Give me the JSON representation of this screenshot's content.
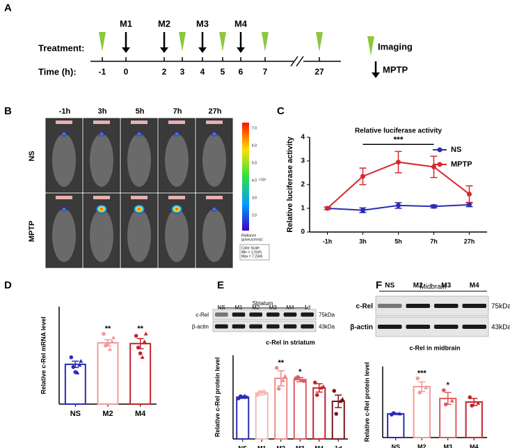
{
  "panel_labels": [
    "A",
    "B",
    "C",
    "D",
    "E",
    "F"
  ],
  "panel_a": {
    "treatment_label": "Treatment:",
    "time_label": "Time (h):",
    "time_ticks": [
      "-1",
      "0",
      "2",
      "3",
      "4",
      "5",
      "6",
      "7",
      "27"
    ],
    "doses": [
      "M1",
      "M2",
      "M3",
      "M4"
    ],
    "legend": [
      "Imaging",
      "MPTP"
    ]
  },
  "panel_b": {
    "timepoints": [
      "-1h",
      "3h",
      "5h",
      "7h",
      "27h"
    ],
    "rows": [
      "NS",
      "MPTP"
    ],
    "colorbar_ticks": [
      "7.0",
      "6.0",
      "5.0",
      "4.0",
      "3.0",
      "2.0"
    ],
    "colorbar_unit": "×10⁵",
    "colorbar_title": [
      "Radiance",
      "(p/sec/cm²/sr)"
    ],
    "color_scale": [
      "Color Scale",
      "Min = 1.01e5",
      "Max = 7.23e5"
    ]
  },
  "blots": [
    {
      "region": "Striatum",
      "lanes": [
        "NS",
        "M1",
        "M2",
        "M3",
        "M4",
        "1d"
      ],
      "rows": [
        "c-Rel",
        "β-actin"
      ],
      "sizes": [
        "75kDa",
        "43kDa"
      ]
    },
    {
      "region": "Midbrain",
      "lanes": [
        "NS",
        "M2",
        "M3",
        "M4"
      ],
      "rows": [
        "c-Rel",
        "β-actin"
      ],
      "sizes": [
        "75kDa",
        "43kDa"
      ]
    }
  ],
  "chart_data": [
    {
      "type": "line",
      "title": "Relative luciferase activity",
      "ylabel": "Relative luciferase activity",
      "categories": [
        "-1h",
        "3h",
        "5h",
        "7h",
        "27h"
      ],
      "ylim": [
        0,
        4
      ],
      "yticks": [
        0,
        1,
        2,
        3,
        4
      ],
      "series": [
        {
          "name": "NS",
          "color": "#2b2bb5",
          "values": [
            1.0,
            0.92,
            1.12,
            1.08,
            1.15
          ],
          "errors": [
            0.05,
            0.1,
            0.12,
            0.06,
            0.08
          ]
        },
        {
          "name": "MPTP",
          "color": "#d7282f",
          "values": [
            1.0,
            2.35,
            2.95,
            2.75,
            1.6
          ],
          "errors": [
            0.05,
            0.35,
            0.45,
            0.45,
            0.35
          ]
        }
      ],
      "annotation": "***",
      "legend": "top-right"
    },
    {
      "type": "bar",
      "ylabel": "Relative c-Rel mRNA level",
      "categories": [
        "NS",
        "M2",
        "M4"
      ],
      "colors": [
        "#2b2bb5",
        "#f09a9a",
        "#c4232b"
      ],
      "values": [
        1.02,
        1.57,
        1.55
      ],
      "errors": [
        0.08,
        0.08,
        0.13
      ],
      "points": [
        [
          1.2,
          1.0,
          0.95,
          0.8,
          0.82,
          1.1
        ],
        [
          1.8,
          1.6,
          1.5,
          1.4,
          1.55,
          1.7
        ],
        [
          1.75,
          1.6,
          1.45,
          1.2,
          1.3,
          1.8
        ]
      ],
      "significance": [
        null,
        "**",
        "**"
      ],
      "ylim": [
        0,
        2.5
      ]
    },
    {
      "type": "bar",
      "title": "c-Rel in striatum",
      "ylabel": "Relative c-Rel protein level",
      "categories": [
        "NS",
        "M1",
        "M2",
        "M3",
        "M4",
        "1d"
      ],
      "colors": [
        "#2b2bb5",
        "#f4b8b8",
        "#ec8a8a",
        "#e05a5a",
        "#c4232b",
        "#7a1518"
      ],
      "values": [
        1.0,
        1.1,
        1.45,
        1.42,
        1.22,
        0.9
      ],
      "errors": [
        0.03,
        0.05,
        0.18,
        0.05,
        0.1,
        0.15
      ],
      "points": [
        [
          0.97,
          1.0,
          1.02,
          1.03
        ],
        [
          1.05,
          1.1,
          1.12,
          1.14
        ],
        [
          1.7,
          1.5,
          1.2,
          1.4
        ],
        [
          1.45,
          1.38,
          1.48,
          1.4
        ],
        [
          1.35,
          1.25,
          1.05,
          1.22
        ],
        [
          1.15,
          0.95,
          0.6,
          0.9
        ]
      ],
      "significance": [
        null,
        null,
        "**",
        "*",
        null,
        null
      ],
      "ylim": [
        0,
        2
      ]
    },
    {
      "type": "bar",
      "title": "c-Rel in midbrain",
      "ylabel": "Relative c-Rel protein level",
      "categories": [
        "NS",
        "M2",
        "M3",
        "M4"
      ],
      "colors": [
        "#2b2bb5",
        "#f09a9a",
        "#e05a5a",
        "#c4232b"
      ],
      "values": [
        1.0,
        2.15,
        1.65,
        1.5
      ],
      "errors": [
        0.03,
        0.2,
        0.25,
        0.15
      ],
      "points": [
        [
          0.97,
          1.0,
          1.03
        ],
        [
          2.5,
          2.1,
          1.9
        ],
        [
          2.0,
          1.55,
          1.4
        ],
        [
          1.7,
          1.45,
          1.35
        ]
      ],
      "significance": [
        null,
        "***",
        "*",
        null
      ],
      "ylim": [
        0,
        3
      ]
    }
  ]
}
